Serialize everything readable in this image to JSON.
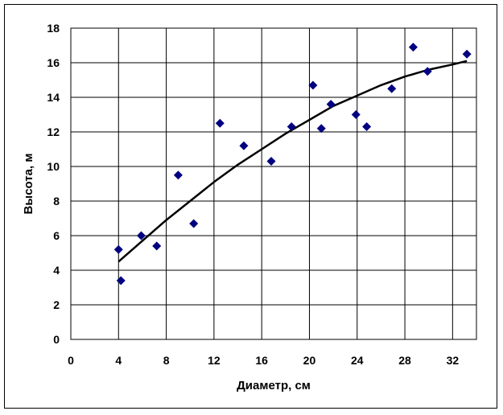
{
  "chart_data": {
    "type": "scatter",
    "xlabel": "Диаметр,  см",
    "ylabel": "Высота,  м",
    "xlim": [
      0,
      34
    ],
    "ylim": [
      0,
      18
    ],
    "x_ticks": [
      0,
      4,
      8,
      12,
      16,
      20,
      24,
      28,
      32
    ],
    "y_ticks": [
      0,
      2,
      4,
      6,
      8,
      10,
      12,
      14,
      16,
      18
    ],
    "grid": true,
    "legend": "none",
    "series": [
      {
        "marker": "diamond",
        "color": "#000080",
        "points": [
          [
            4.0,
            5.2
          ],
          [
            4.2,
            3.4
          ],
          [
            5.9,
            6.0
          ],
          [
            7.2,
            5.4
          ],
          [
            9.0,
            9.5
          ],
          [
            10.3,
            6.7
          ],
          [
            12.5,
            12.5
          ],
          [
            14.5,
            11.2
          ],
          [
            16.8,
            10.3
          ],
          [
            18.5,
            12.3
          ],
          [
            20.3,
            14.7
          ],
          [
            21.0,
            12.2
          ],
          [
            21.8,
            13.6
          ],
          [
            23.9,
            13.0
          ],
          [
            24.8,
            12.3
          ],
          [
            26.9,
            14.5
          ],
          [
            28.7,
            16.9
          ],
          [
            29.9,
            15.5
          ],
          [
            33.2,
            16.5
          ]
        ]
      },
      {
        "type": "line",
        "color": "#000000",
        "points": [
          [
            4.0,
            4.5
          ],
          [
            6.0,
            5.7
          ],
          [
            8.0,
            6.9
          ],
          [
            10.0,
            8.0
          ],
          [
            12.0,
            9.1
          ],
          [
            14.0,
            10.1
          ],
          [
            16.0,
            11.0
          ],
          [
            18.0,
            11.9
          ],
          [
            20.0,
            12.7
          ],
          [
            22.0,
            13.5
          ],
          [
            24.0,
            14.1
          ],
          [
            26.0,
            14.7
          ],
          [
            28.0,
            15.2
          ],
          [
            30.0,
            15.6
          ],
          [
            32.0,
            15.9
          ],
          [
            33.2,
            16.1
          ]
        ]
      }
    ]
  }
}
